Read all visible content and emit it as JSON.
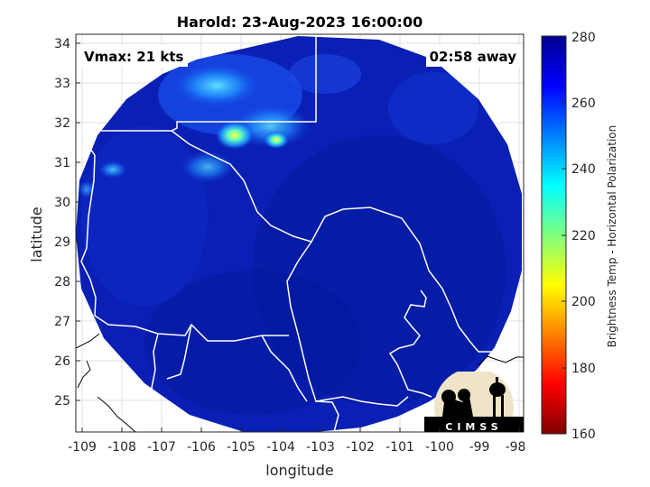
{
  "title": "Harold: 23-Aug-2023 16:00:00",
  "vmax_label": "Vmax: 21 kts",
  "time_away": "02:58 away",
  "xlabel": "longitude",
  "ylabel": "latitude",
  "colorbar_label": "Brightness Temp - Horizontal Polarization",
  "logo_text": "CIMSS",
  "x_ticks": [
    "-109",
    "-108",
    "-107",
    "-106",
    "-105",
    "-104",
    "-103",
    "-102",
    "-101",
    "-100",
    "-99",
    "-98"
  ],
  "y_ticks": [
    "25",
    "26",
    "27",
    "28",
    "29",
    "30",
    "31",
    "32",
    "33",
    "34"
  ],
  "colorbar_ticks": [
    "280",
    "260",
    "240",
    "220",
    "200",
    "180",
    "160"
  ],
  "colors": {
    "swath_base": "#0a1fb3",
    "swath_dark": "#001a8c",
    "border_line": "#ffffff",
    "coast_line": "#000000",
    "grid": "#dcdcdc"
  },
  "chart_data": {
    "type": "heatmap",
    "title": "Harold: 23-Aug-2023 16:00:00",
    "xlabel": "longitude",
    "ylabel": "latitude",
    "xlim": [
      -109.2,
      -97.8
    ],
    "ylim": [
      24.2,
      34.2
    ],
    "colorbar": {
      "label": "Brightness Temp - Horizontal Polarization",
      "range": [
        160,
        280
      ],
      "colormap": "jet"
    },
    "grid": true,
    "features": [
      {
        "region": "northern swath near 32N -105W",
        "value_range": [
          230,
          250
        ]
      },
      {
        "region": "small bright spot 31.6N -105.1W",
        "value_range": [
          210,
          220
        ]
      }
    ]
  }
}
